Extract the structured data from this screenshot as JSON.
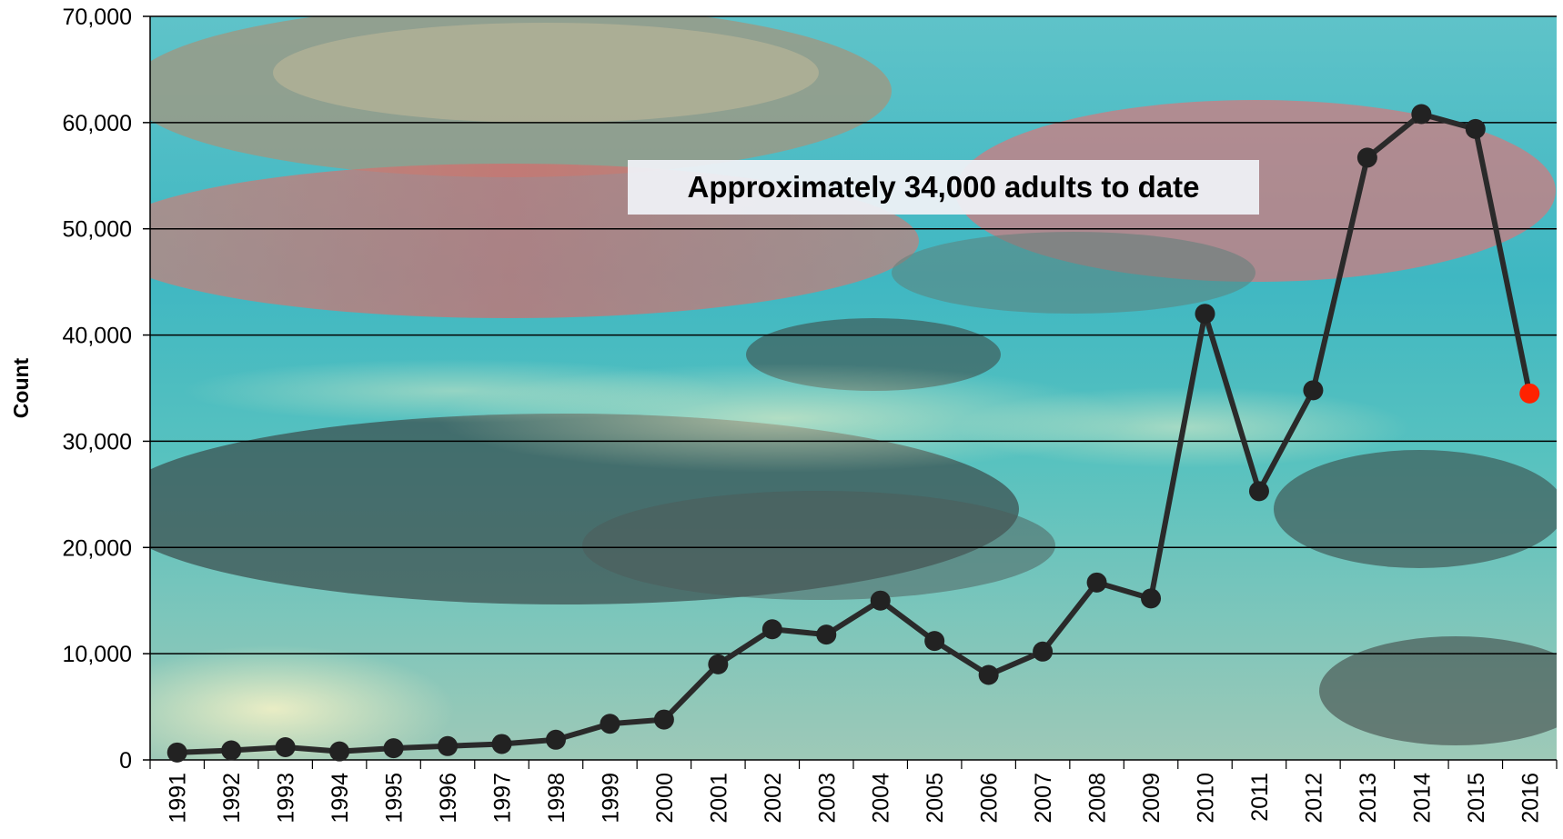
{
  "chart_data": {
    "type": "line",
    "title": "",
    "xlabel": "",
    "ylabel": "Count",
    "ylim": [
      0,
      70000
    ],
    "y_ticks": [
      "0",
      "10,000",
      "20,000",
      "30,000",
      "40,000",
      "50,000",
      "60,000",
      "70,000"
    ],
    "y_tick_values": [
      0,
      10000,
      20000,
      30000,
      40000,
      50000,
      60000,
      70000
    ],
    "grid": true,
    "categories": [
      "1991",
      "1992",
      "1993",
      "1994",
      "1995",
      "1996",
      "1997",
      "1998",
      "1999",
      "2000",
      "2001",
      "2002",
      "2003",
      "2004",
      "2005",
      "2006",
      "2007",
      "2008",
      "2009",
      "2010",
      "2011",
      "2012",
      "2013",
      "2014",
      "2015",
      "2016"
    ],
    "series": [
      {
        "values": [
          700,
          900,
          1200,
          800,
          1100,
          1300,
          1500,
          1900,
          3400,
          3800,
          9000,
          12300,
          11800,
          15000,
          11200,
          8000,
          10200,
          16700,
          15200,
          42000,
          25300,
          34800,
          56700,
          60800,
          59400,
          34500
        ],
        "line_color": "#2a2a2a",
        "marker_color": "#222222",
        "highlight_index": 25,
        "highlight_color": "#ff2200"
      }
    ],
    "annotation": "Approximately 34,000 adults to date",
    "background": "underwater photograph of salmon"
  }
}
